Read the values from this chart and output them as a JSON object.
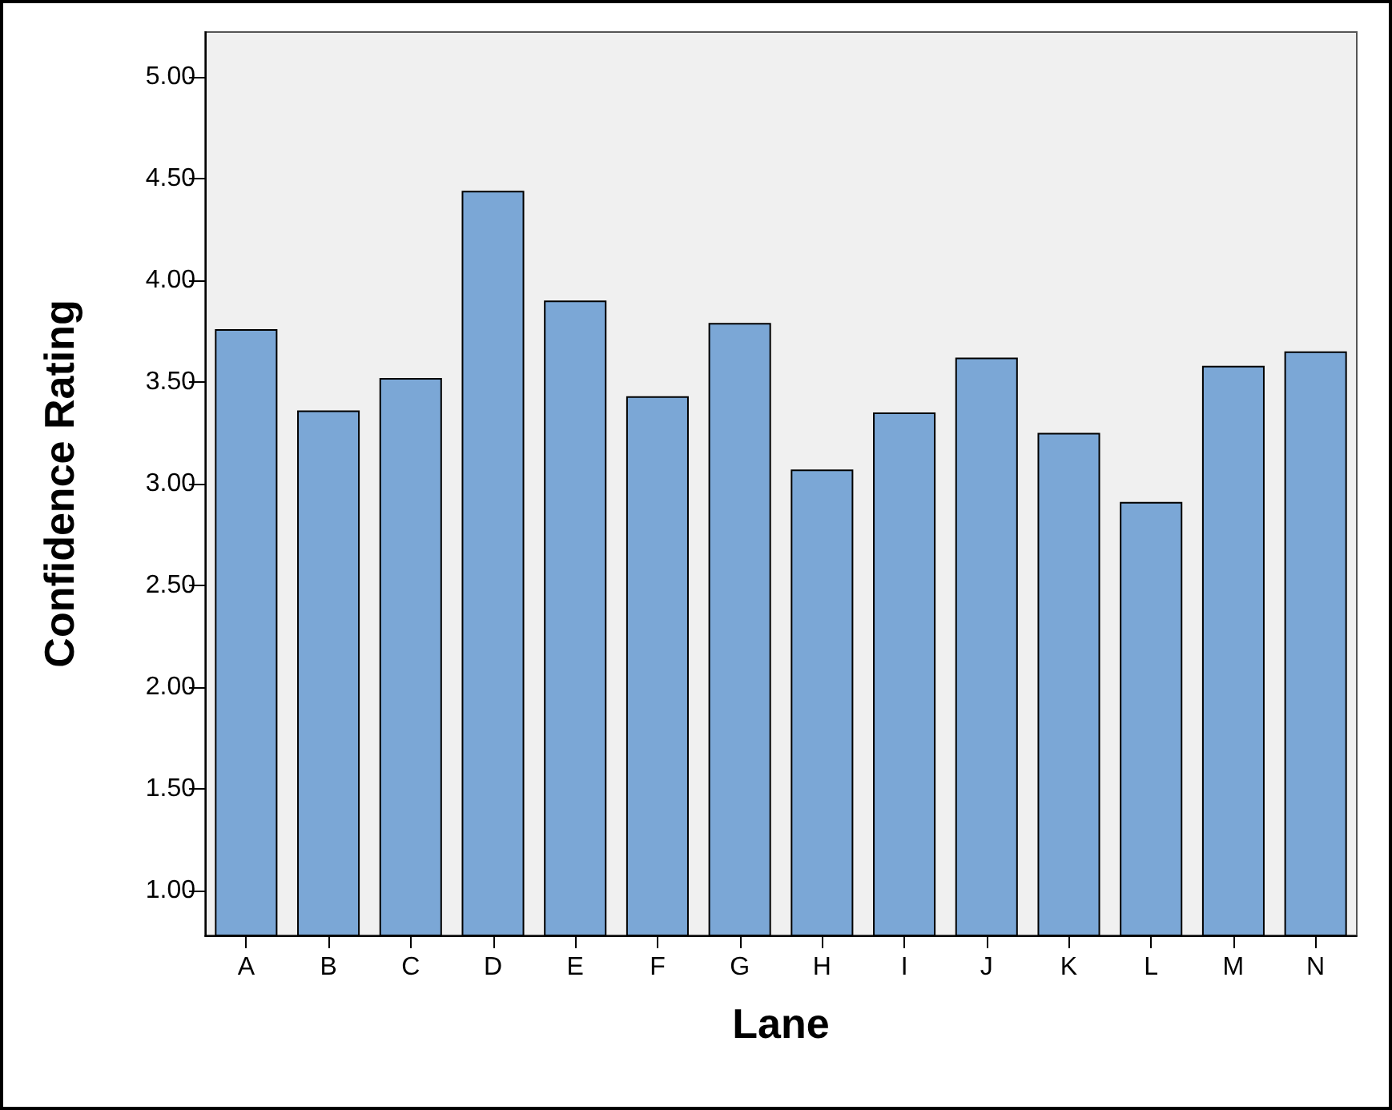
{
  "chart_data": {
    "type": "bar",
    "xlabel": "Lane",
    "ylabel": "Confidence Rating",
    "categories": [
      "A",
      "B",
      "C",
      "D",
      "E",
      "F",
      "G",
      "H",
      "I",
      "J",
      "K",
      "L",
      "M",
      "N"
    ],
    "values": [
      3.76,
      3.36,
      3.52,
      4.44,
      3.9,
      3.43,
      3.79,
      3.07,
      3.35,
      3.62,
      3.25,
      2.91,
      3.58,
      3.65
    ],
    "color": "#7ba7d6",
    "ylim": [
      0.78,
      5.22
    ],
    "yticks": [
      {
        "value": 1,
        "label": "1.00"
      },
      {
        "value": 1.5,
        "label": "1.50"
      },
      {
        "value": 2,
        "label": "2.00"
      },
      {
        "value": 2.5,
        "label": "2.50"
      },
      {
        "value": 3,
        "label": "3.00"
      },
      {
        "value": 3.5,
        "label": "3.50"
      },
      {
        "value": 4,
        "label": "4.00"
      },
      {
        "value": 4.5,
        "label": "4.50"
      },
      {
        "value": 5,
        "label": "5.00"
      }
    ],
    "grid": false
  }
}
